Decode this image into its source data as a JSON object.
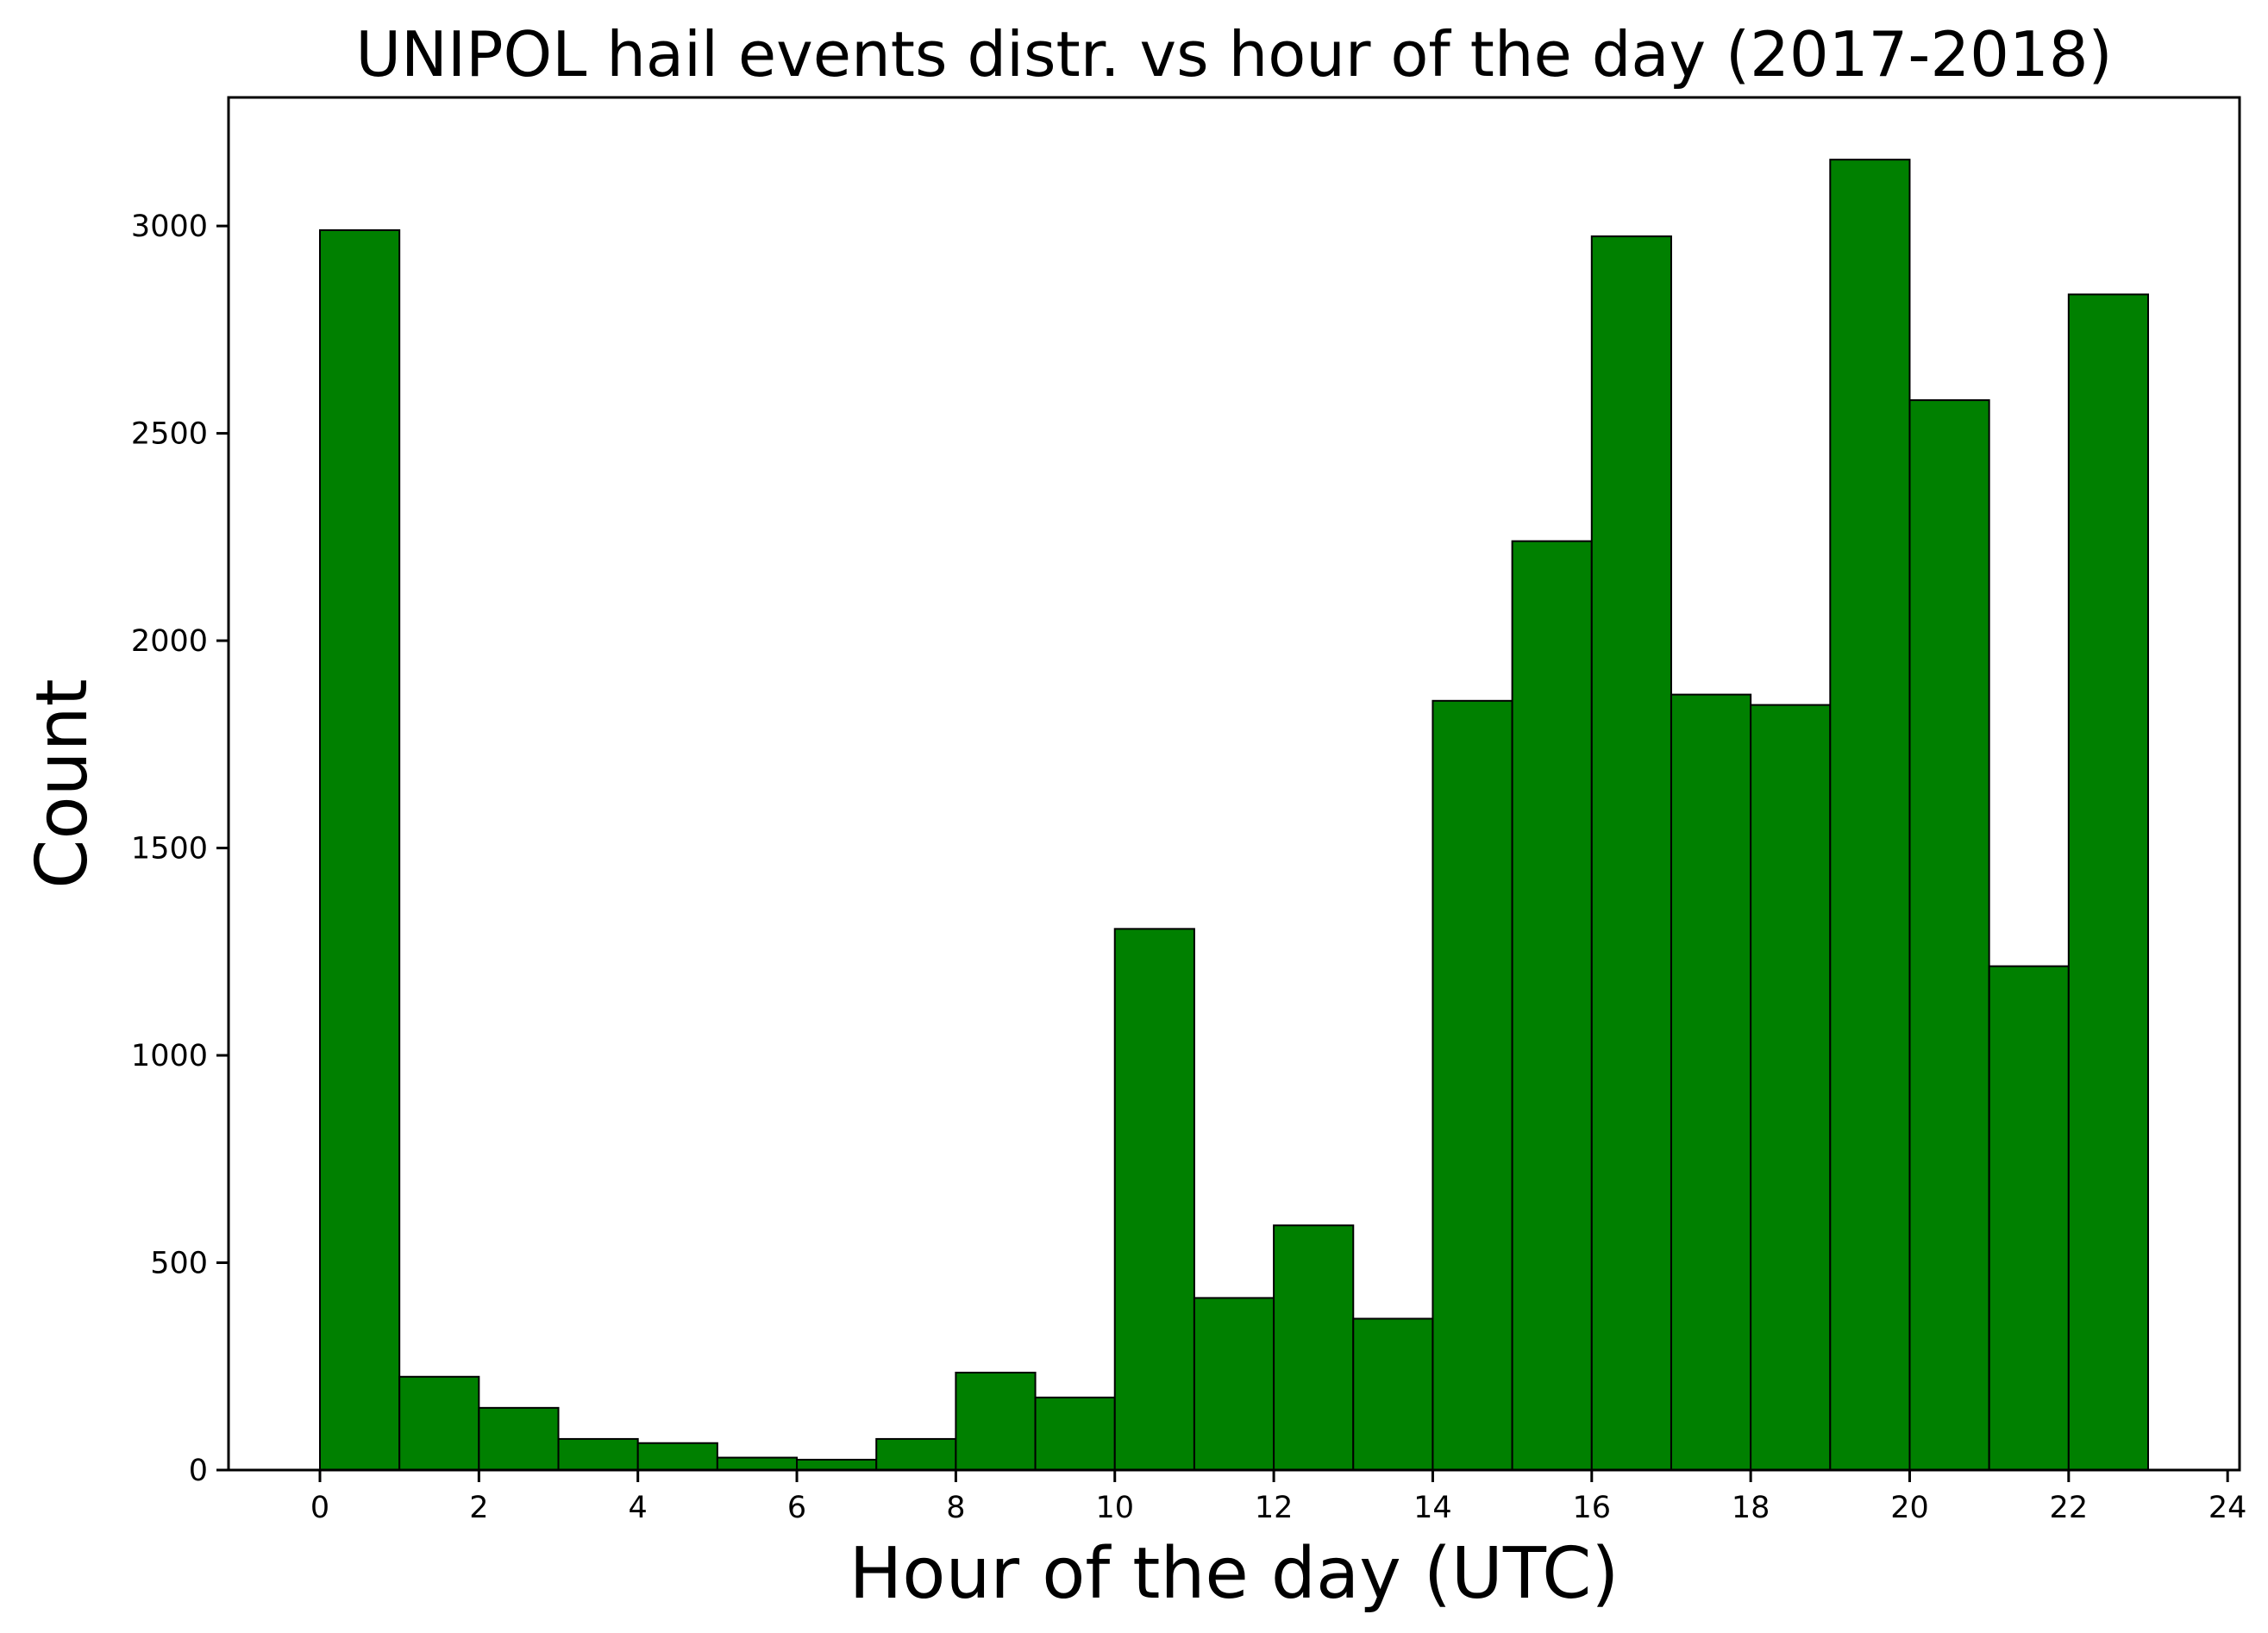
{
  "chart_data": {
    "type": "bar",
    "title": "UNIPOL hail events distr. vs hour of the day (2017-2018)",
    "xlabel": "Hour of the day (UTC)",
    "ylabel": "Count",
    "bin_edges": [
      0,
      1,
      2,
      3,
      4,
      5,
      6,
      7,
      8,
      9,
      10,
      11,
      12,
      13,
      14,
      15,
      16,
      17,
      18,
      19,
      20,
      21,
      22,
      23
    ],
    "values": [
      2990,
      225,
      150,
      75,
      65,
      30,
      25,
      75,
      235,
      175,
      1305,
      415,
      590,
      365,
      1855,
      2240,
      2975,
      1870,
      1845,
      3160,
      2580,
      1215,
      2835
    ],
    "xlim": [
      -1.15,
      24.15
    ],
    "ylim": [
      0,
      3310
    ],
    "xticks": [
      0,
      2,
      4,
      6,
      8,
      10,
      12,
      14,
      16,
      18,
      20,
      22,
      24
    ],
    "yticks": [
      0,
      500,
      1000,
      1500,
      2000,
      2500,
      3000
    ],
    "grid": false,
    "legend": null,
    "bar_color": "#008000",
    "edge_color": "#000000"
  }
}
